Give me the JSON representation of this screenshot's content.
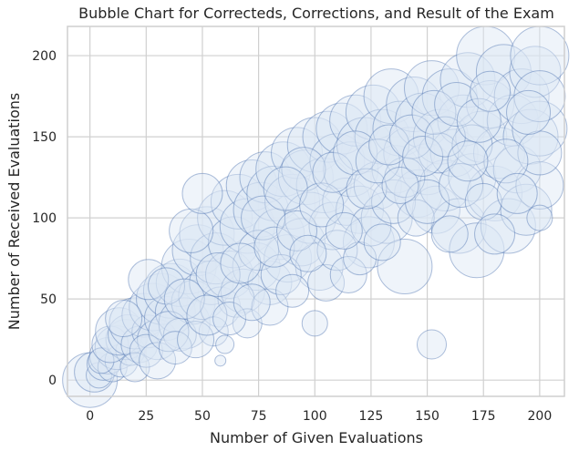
{
  "chart_data": {
    "type": "scatter",
    "title": "Bubble Chart for Correcteds, Corrections, and Result of the Exam",
    "xlabel": "Number of Given Evaluations",
    "ylabel": "Number of Received Evaluations",
    "xlim": [
      -10,
      211
    ],
    "ylim": [
      -10,
      218
    ],
    "xticks": [
      0,
      25,
      50,
      75,
      100,
      125,
      150,
      175,
      200
    ],
    "yticks": [
      0,
      50,
      100,
      150,
      200
    ],
    "grid": true,
    "colors": {
      "fill": "#dbe6f5",
      "stroke": "#4c72b0",
      "grid": "#d0d0d0"
    },
    "points": [
      [
        0,
        0,
        30
      ],
      [
        2,
        5,
        22
      ],
      [
        4,
        3,
        14
      ],
      [
        6,
        10,
        18
      ],
      [
        8,
        15,
        20
      ],
      [
        10,
        8,
        16
      ],
      [
        12,
        20,
        24
      ],
      [
        14,
        12,
        18
      ],
      [
        16,
        25,
        22
      ],
      [
        18,
        18,
        16
      ],
      [
        5,
        12,
        14
      ],
      [
        9,
        22,
        20
      ],
      [
        13,
        30,
        26
      ],
      [
        17,
        28,
        22
      ],
      [
        20,
        35,
        28
      ],
      [
        22,
        22,
        20
      ],
      [
        24,
        40,
        24
      ],
      [
        26,
        30,
        18
      ],
      [
        28,
        45,
        26
      ],
      [
        30,
        25,
        22
      ],
      [
        32,
        50,
        28
      ],
      [
        34,
        38,
        24
      ],
      [
        36,
        55,
        30
      ],
      [
        38,
        42,
        22
      ],
      [
        40,
        60,
        26
      ],
      [
        42,
        35,
        28
      ],
      [
        44,
        70,
        30
      ],
      [
        46,
        48,
        24
      ],
      [
        48,
        80,
        28
      ],
      [
        50,
        52,
        26
      ],
      [
        52,
        90,
        30
      ],
      [
        54,
        60,
        24
      ],
      [
        56,
        75,
        28
      ],
      [
        58,
        45,
        22
      ],
      [
        60,
        100,
        30
      ],
      [
        62,
        65,
        26
      ],
      [
        64,
        85,
        28
      ],
      [
        66,
        110,
        30
      ],
      [
        68,
        55,
        24
      ],
      [
        70,
        95,
        30
      ],
      [
        72,
        120,
        28
      ],
      [
        74,
        70,
        26
      ],
      [
        76,
        105,
        30
      ],
      [
        78,
        125,
        28
      ],
      [
        80,
        60,
        24
      ],
      [
        82,
        115,
        30
      ],
      [
        84,
        90,
        28
      ],
      [
        86,
        130,
        30
      ],
      [
        88,
        75,
        26
      ],
      [
        90,
        110,
        30
      ],
      [
        92,
        140,
        28
      ],
      [
        94,
        85,
        26
      ],
      [
        96,
        125,
        30
      ],
      [
        98,
        100,
        28
      ],
      [
        100,
        145,
        30
      ],
      [
        102,
        70,
        26
      ],
      [
        104,
        120,
        30
      ],
      [
        106,
        150,
        28
      ],
      [
        108,
        95,
        26
      ],
      [
        110,
        135,
        30
      ],
      [
        112,
        155,
        28
      ],
      [
        114,
        110,
        26
      ],
      [
        116,
        130,
        30
      ],
      [
        118,
        160,
        28
      ],
      [
        120,
        105,
        26
      ],
      [
        122,
        145,
        30
      ],
      [
        124,
        85,
        28
      ],
      [
        126,
        165,
        30
      ],
      [
        128,
        120,
        26
      ],
      [
        130,
        150,
        30
      ],
      [
        132,
        100,
        28
      ],
      [
        134,
        175,
        30
      ],
      [
        136,
        130,
        26
      ],
      [
        138,
        155,
        30
      ],
      [
        140,
        70,
        30
      ],
      [
        142,
        140,
        28
      ],
      [
        144,
        170,
        30
      ],
      [
        146,
        115,
        26
      ],
      [
        148,
        160,
        30
      ],
      [
        150,
        130,
        28
      ],
      [
        152,
        180,
        30
      ],
      [
        154,
        105,
        26
      ],
      [
        156,
        150,
        30
      ],
      [
        158,
        120,
        28
      ],
      [
        160,
        175,
        30
      ],
      [
        162,
        140,
        26
      ],
      [
        164,
        95,
        30
      ],
      [
        166,
        160,
        28
      ],
      [
        168,
        185,
        30
      ],
      [
        170,
        125,
        26
      ],
      [
        172,
        80,
        30
      ],
      [
        174,
        150,
        28
      ],
      [
        176,
        200,
        32
      ],
      [
        178,
        170,
        26
      ],
      [
        180,
        115,
        30
      ],
      [
        182,
        140,
        28
      ],
      [
        184,
        190,
        30
      ],
      [
        186,
        95,
        30
      ],
      [
        188,
        160,
        28
      ],
      [
        190,
        130,
        26
      ],
      [
        192,
        175,
        30
      ],
      [
        194,
        105,
        28
      ],
      [
        196,
        150,
        30
      ],
      [
        198,
        190,
        28
      ],
      [
        200,
        200,
        32
      ],
      [
        200,
        155,
        30
      ],
      [
        200,
        120,
        26
      ],
      [
        200,
        175,
        28
      ],
      [
        200,
        100,
        14
      ],
      [
        200,
        140,
        24
      ],
      [
        26,
        62,
        22
      ],
      [
        34,
        58,
        20
      ],
      [
        40,
        28,
        18
      ],
      [
        45,
        92,
        24
      ],
      [
        50,
        115,
        22
      ],
      [
        55,
        30,
        16
      ],
      [
        58,
        12,
        6
      ],
      [
        60,
        22,
        10
      ],
      [
        65,
        50,
        20
      ],
      [
        70,
        35,
        16
      ],
      [
        75,
        80,
        22
      ],
      [
        80,
        45,
        20
      ],
      [
        85,
        65,
        22
      ],
      [
        90,
        55,
        18
      ],
      [
        95,
        130,
        24
      ],
      [
        100,
        35,
        14
      ],
      [
        105,
        60,
        20
      ],
      [
        110,
        80,
        22
      ],
      [
        115,
        65,
        20
      ],
      [
        120,
        75,
        18
      ],
      [
        125,
        95,
        22
      ],
      [
        130,
        85,
        20
      ],
      [
        135,
        110,
        24
      ],
      [
        140,
        125,
        22
      ],
      [
        145,
        100,
        20
      ],
      [
        150,
        110,
        24
      ],
      [
        152,
        22,
        16
      ],
      [
        155,
        140,
        22
      ],
      [
        160,
        90,
        20
      ],
      [
        165,
        120,
        24
      ],
      [
        170,
        145,
        22
      ],
      [
        175,
        110,
        20
      ],
      [
        180,
        90,
        22
      ],
      [
        185,
        135,
        24
      ],
      [
        190,
        115,
        22
      ],
      [
        195,
        165,
        24
      ],
      [
        15,
        38,
        20
      ],
      [
        20,
        8,
        16
      ],
      [
        25,
        18,
        18
      ],
      [
        30,
        12,
        20
      ],
      [
        35,
        30,
        22
      ],
      [
        38,
        20,
        18
      ],
      [
        42,
        50,
        22
      ],
      [
        47,
        25,
        20
      ],
      [
        52,
        40,
        22
      ],
      [
        57,
        65,
        24
      ],
      [
        62,
        38,
        18
      ],
      [
        67,
        72,
        22
      ],
      [
        72,
        48,
        20
      ],
      [
        77,
        100,
        24
      ],
      [
        82,
        82,
        22
      ],
      [
        87,
        118,
        24
      ],
      [
        92,
        92,
        22
      ],
      [
        97,
        78,
        20
      ],
      [
        103,
        108,
        24
      ],
      [
        108,
        128,
        22
      ],
      [
        113,
        92,
        20
      ],
      [
        118,
        140,
        24
      ],
      [
        123,
        118,
        22
      ],
      [
        128,
        135,
        24
      ],
      [
        133,
        145,
        22
      ],
      [
        138,
        120,
        20
      ],
      [
        143,
        150,
        24
      ],
      [
        148,
        138,
        22
      ],
      [
        153,
        165,
        24
      ],
      [
        158,
        150,
        22
      ],
      [
        163,
        170,
        24
      ],
      [
        168,
        135,
        22
      ],
      [
        173,
        160,
        24
      ],
      [
        178,
        178,
        22
      ]
    ]
  }
}
